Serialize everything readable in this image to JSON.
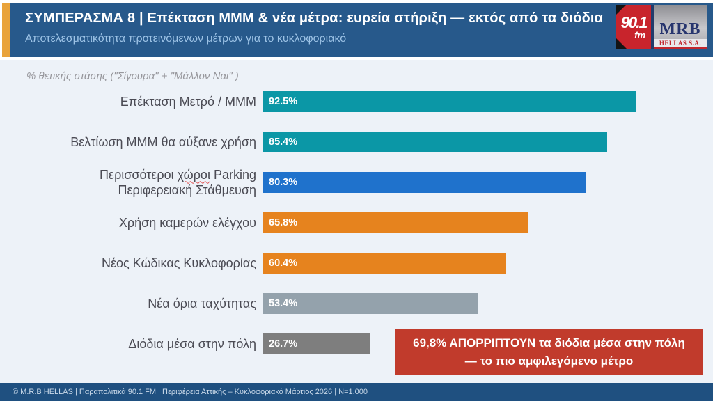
{
  "header": {
    "title": "ΣΥΜΠΕΡΑΣΜΑ 8  |  Επέκταση ΜΜΜ & νέα μέτρα: ευρεία στήριξη — εκτός από τα διόδια",
    "subtitle": "Αποτελεσματικότητα προτεινόμενων μέτρων για το κυκλοφοριακό",
    "background": "#27598B",
    "accent_color": "#E9A33B"
  },
  "logo": {
    "station_number": "90.1",
    "station_band": "fm",
    "company": "MRB",
    "company_subtitle": "HELLAS S.A."
  },
  "chart_data": {
    "type": "bar",
    "orientation": "horizontal",
    "note": "% θετικής στάσης (\"Σίγουρα\" + \"Μάλλον Ναι\" )",
    "categories": [
      "Επέκταση Μετρό / ΜΜΜ",
      "Βελτίωση ΜΜΜ θα αύξανε χρήση",
      "Περισσότεροι χώροι Parking Περιφερειακή Στάθμευση",
      "Χρήση καμερών ελέγχου",
      "Νέος Κώδικας Κυκλοφορίας",
      "Νέα όρια ταχύτητας",
      "Διόδια μέσα στην πόλη"
    ],
    "values": [
      92.5,
      85.4,
      80.3,
      65.8,
      60.4,
      53.4,
      26.7
    ],
    "value_labels": [
      "92.5%",
      "85.4%",
      "80.3%",
      "65.8%",
      "60.4%",
      "53.4%",
      "26.7%"
    ],
    "bar_colors": [
      "#0B97A6",
      "#0B97A6",
      "#1F72CC",
      "#E6831E",
      "#E6831E",
      "#94A2AC",
      "#7E7E7E"
    ],
    "label_lines": [
      [
        "Επέκταση Μετρό / ΜΜΜ"
      ],
      [
        "Βελτίωση ΜΜΜ θα αύξανε χρήση"
      ],
      [
        "Περισσότεροι χώροι Parking",
        "Περιφερειακή Στάθμευση"
      ],
      [
        "Χρήση καμερών ελέγχου"
      ],
      [
        "Νέος Κώδικας Κυκλοφορίας"
      ],
      [
        "Νέα όρια ταχύτητας"
      ],
      [
        "Διόδια μέσα στην πόλη"
      ]
    ],
    "spellcheck": {
      "before": "Περισσότεροι ",
      "word": "χώροι",
      "after": " Parking"
    },
    "xlim": [
      0,
      100
    ],
    "grid": false,
    "legend": false,
    "title": "",
    "xlabel": "",
    "ylabel": ""
  },
  "callout": {
    "line1": "69,8% ΑΠΟΡΡΙΠΤΟΥΝ τα διόδια μέσα στην πόλη",
    "line2": "— το πιο αμφιλεγόμενο μέτρο",
    "background": "#C13B2C"
  },
  "footer": {
    "text": "© M.R.B HELLAS  |  Παραπολιτικά 90.1 FM  |  Περιφέρεια Αττικής – Κυκλοφοριακό Μάρτιος 2026  |  N=1.000",
    "background": "#1F5080"
  }
}
